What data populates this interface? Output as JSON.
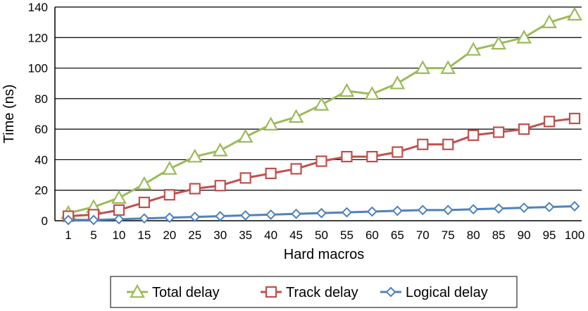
{
  "chart_data": {
    "type": "line",
    "title": "",
    "xlabel": "Hard macros",
    "ylabel": "Time (ns)",
    "ylim": [
      0,
      140
    ],
    "yticks": [
      "0",
      "20",
      "40",
      "60",
      "80",
      "100",
      "120",
      "140"
    ],
    "grid": true,
    "legend_position": "bottom",
    "categories": [
      "1",
      "5",
      "10",
      "15",
      "20",
      "25",
      "30",
      "35",
      "40",
      "45",
      "50",
      "55",
      "60",
      "65",
      "70",
      "75",
      "80",
      "85",
      "90",
      "95",
      "100"
    ],
    "series": [
      {
        "name": "Total delay",
        "marker": "triangle",
        "color": "#9BBB59",
        "values": [
          5,
          9,
          15,
          24,
          34,
          42,
          46,
          55,
          63,
          68,
          76,
          85,
          83,
          90,
          100,
          100,
          112,
          116,
          120,
          130,
          135
        ]
      },
      {
        "name": "Track delay",
        "marker": "square",
        "color": "#C0504D",
        "values": [
          3,
          4,
          7,
          12,
          17,
          21,
          23,
          28,
          31,
          34,
          39,
          42,
          42,
          45,
          50,
          50,
          56,
          58,
          60,
          65,
          67
        ]
      },
      {
        "name": "Logical delay",
        "marker": "diamond",
        "color": "#4F81BD",
        "values": [
          0.5,
          0.5,
          1,
          1.5,
          2,
          2.5,
          3,
          3.5,
          4,
          4.5,
          5,
          5.5,
          6,
          6.5,
          7,
          7,
          7.5,
          8,
          8.5,
          9,
          9.5
        ]
      }
    ]
  }
}
